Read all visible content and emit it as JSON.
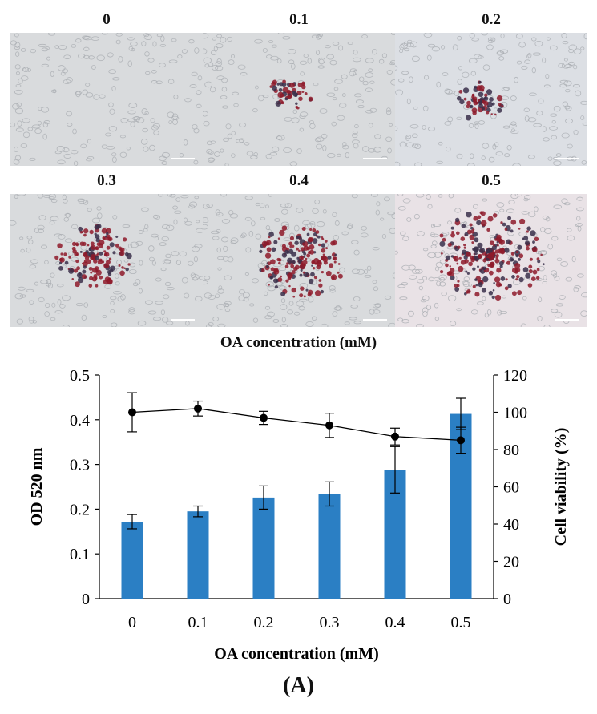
{
  "micrographs": {
    "title": "OA concentration (mM)",
    "panels": [
      {
        "label": "0",
        "stain": 0.0
      },
      {
        "label": "0.1",
        "stain": 0.18
      },
      {
        "label": "0.2",
        "stain": 0.22
      },
      {
        "label": "0.3",
        "stain": 0.55
      },
      {
        "label": "0.4",
        "stain": 0.7
      },
      {
        "label": "0.5",
        "stain": 0.95
      }
    ]
  },
  "chart_data": {
    "type": "bar",
    "categories": [
      "0",
      "0.1",
      "0.2",
      "0.3",
      "0.4",
      "0.5"
    ],
    "xlabel": "OA concentration (mM)",
    "series": [
      {
        "axis": "left",
        "type": "bar",
        "color": "#2b7fc4",
        "values": [
          0.172,
          0.195,
          0.226,
          0.234,
          0.288,
          0.413
        ],
        "errors": [
          0.016,
          0.012,
          0.026,
          0.027,
          0.052,
          0.035
        ]
      },
      {
        "axis": "right",
        "type": "line",
        "color": "#000000",
        "values": [
          100.0,
          102.0,
          97.0,
          93.0,
          87.0,
          85.0
        ],
        "errors": [
          10.5,
          4.0,
          3.5,
          6.5,
          4.5,
          7.0
        ]
      }
    ],
    "ylabel": "OD 520 nm",
    "ylim": [
      0,
      0.5
    ],
    "yticks": [
      "0",
      "0.1",
      "0.2",
      "0.3",
      "0.4",
      "0.5"
    ],
    "y2label": "Cell viability (%)",
    "y2lim": [
      0,
      120
    ],
    "y2ticks": [
      "0",
      "20",
      "40",
      "60",
      "80",
      "100",
      "120"
    ],
    "grid": false
  },
  "figure_label": "(A)"
}
